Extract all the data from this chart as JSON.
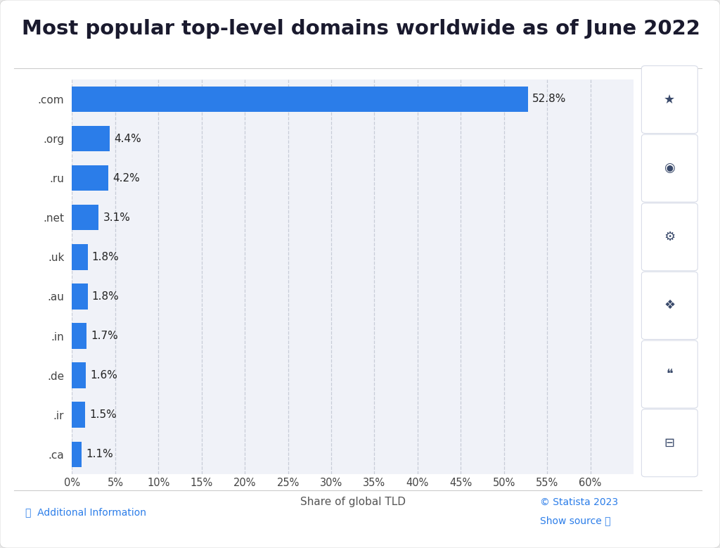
{
  "title": "Most popular top-level domains worldwide as of June 2022",
  "categories": [
    ".ca",
    ".ir",
    ".de",
    ".in",
    ".au",
    ".uk",
    ".net",
    ".ru",
    ".org",
    ".com"
  ],
  "values": [
    1.1,
    1.5,
    1.6,
    1.7,
    1.8,
    1.8,
    3.1,
    4.2,
    4.4,
    52.8
  ],
  "bar_color": "#2b7de9",
  "xlabel": "Share of global TLD",
  "xlim": [
    0,
    65
  ],
  "xticks": [
    0,
    5,
    10,
    15,
    20,
    25,
    30,
    35,
    40,
    45,
    50,
    55,
    60
  ],
  "xtick_labels": [
    "0%",
    "5%",
    "10%",
    "15%",
    "20%",
    "25%",
    "30%",
    "35%",
    "40%",
    "45%",
    "50%",
    "55%",
    "60%"
  ],
  "title_fontsize": 21,
  "label_fontsize": 11,
  "tick_fontsize": 10.5,
  "bar_label_fontsize": 11,
  "ytick_fontsize": 11,
  "background_color": "#ffffff",
  "outer_bg_color": "#e8e8e8",
  "plot_bg_color": "#f0f2f8",
  "grid_color": "#c8ccd8",
  "title_color": "#1a1a2e",
  "axis_label_color": "#555555",
  "tick_label_color": "#444444",
  "bar_label_color": "#222222",
  "card_bg": "#f5f6fa",
  "card_border": "#dde0ea",
  "footer_text_left": "ⓘ  Additional Information",
  "footer_text_right_copy": "© Statista 2023",
  "footer_text_right_link": "Show source ⓘ",
  "footer_color_left": "#2b7de9",
  "footer_color_right_copy": "#2b7de9",
  "footer_color_right_link": "#2b7de9"
}
